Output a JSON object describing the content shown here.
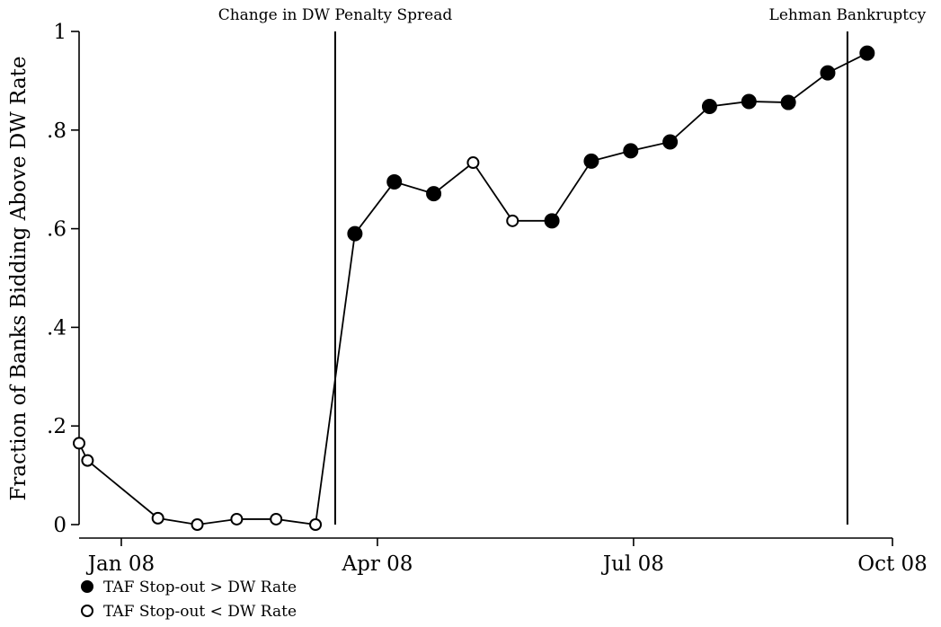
{
  "chart_data": {
    "type": "scatter",
    "title": "",
    "xlabel": "",
    "ylabel": "Fraction of Banks Bidding Above DW Rate",
    "ylim": [
      0,
      1
    ],
    "xlim": [
      "2007-12-17",
      "2008-10-01"
    ],
    "yticks": [
      {
        "value": 0,
        "label": "0"
      },
      {
        "value": 0.2,
        "label": ".2"
      },
      {
        "value": 0.4,
        "label": ".4"
      },
      {
        "value": 0.6,
        "label": ".6"
      },
      {
        "value": 0.8,
        "label": ".8"
      },
      {
        "value": 1,
        "label": "1"
      }
    ],
    "xticks": [
      {
        "value": "2008-01-01",
        "label": "Jan 08"
      },
      {
        "value": "2008-04-01",
        "label": "Apr 08"
      },
      {
        "value": "2008-07-01",
        "label": "Jul 08"
      },
      {
        "value": "2008-10-01",
        "label": "Oct 08"
      }
    ],
    "grid": false,
    "legend": {
      "position": "bottom-left",
      "entries": [
        {
          "marker": "filled-circle",
          "label": "TAF Stop-out > DW Rate"
        },
        {
          "marker": "open-circle",
          "label": "TAF Stop-out < DW Rate"
        }
      ]
    },
    "vlines": [
      {
        "x": "2008-03-17",
        "label": "Change in DW Penalty Spread"
      },
      {
        "x": "2008-09-15",
        "label": "Lehman Bankruptcy"
      }
    ],
    "points": [
      {
        "x": "2007-12-17",
        "y": 0.165,
        "stopout_above_dw": false
      },
      {
        "x": "2007-12-20",
        "y": 0.13,
        "stopout_above_dw": false
      },
      {
        "x": "2008-01-14",
        "y": 0.013,
        "stopout_above_dw": false
      },
      {
        "x": "2008-01-28",
        "y": 0.0,
        "stopout_above_dw": false
      },
      {
        "x": "2008-02-11",
        "y": 0.011,
        "stopout_above_dw": false
      },
      {
        "x": "2008-02-25",
        "y": 0.011,
        "stopout_above_dw": false
      },
      {
        "x": "2008-03-10",
        "y": 0.0,
        "stopout_above_dw": false
      },
      {
        "x": "2008-03-24",
        "y": 0.59,
        "stopout_above_dw": true
      },
      {
        "x": "2008-04-07",
        "y": 0.695,
        "stopout_above_dw": true
      },
      {
        "x": "2008-04-21",
        "y": 0.671,
        "stopout_above_dw": true
      },
      {
        "x": "2008-05-05",
        "y": 0.734,
        "stopout_above_dw": false
      },
      {
        "x": "2008-05-19",
        "y": 0.616,
        "stopout_above_dw": false
      },
      {
        "x": "2008-06-02",
        "y": 0.616,
        "stopout_above_dw": true
      },
      {
        "x": "2008-06-16",
        "y": 0.737,
        "stopout_above_dw": true
      },
      {
        "x": "2008-06-30",
        "y": 0.758,
        "stopout_above_dw": true
      },
      {
        "x": "2008-07-14",
        "y": 0.776,
        "stopout_above_dw": true
      },
      {
        "x": "2008-07-28",
        "y": 0.848,
        "stopout_above_dw": true
      },
      {
        "x": "2008-08-11",
        "y": 0.858,
        "stopout_above_dw": true
      },
      {
        "x": "2008-08-25",
        "y": 0.856,
        "stopout_above_dw": true
      },
      {
        "x": "2008-09-08",
        "y": 0.916,
        "stopout_above_dw": true
      },
      {
        "x": "2008-09-22",
        "y": 0.956,
        "stopout_above_dw": true
      }
    ]
  }
}
